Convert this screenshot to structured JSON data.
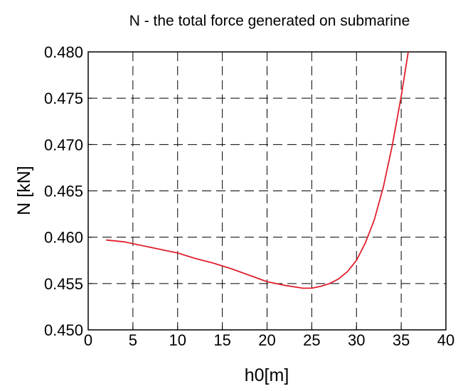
{
  "chart_data": {
    "type": "line",
    "title": "N - the total force generated on submarine",
    "xlabel": "h0[m]",
    "ylabel": "N [kN]",
    "xlim": [
      0,
      40
    ],
    "ylim": [
      0.45,
      0.48
    ],
    "xticks": [
      0,
      5,
      10,
      15,
      20,
      25,
      30,
      35,
      40
    ],
    "xtick_labels": [
      "0",
      "5",
      "10",
      "15",
      "20",
      "25",
      "30",
      "35",
      "40"
    ],
    "yticks": [
      0.45,
      0.455,
      0.46,
      0.465,
      0.47,
      0.475,
      0.48
    ],
    "ytick_labels": [
      "0.450",
      "0.455",
      "0.460",
      "0.465",
      "0.470",
      "0.475",
      "0.480"
    ],
    "grid": true,
    "series": [
      {
        "color": "#e0202c",
        "x": [
          2,
          4,
          6,
          8,
          10,
          12,
          14,
          16,
          18,
          20,
          22,
          24,
          24.5,
          25,
          26,
          27,
          28,
          29,
          30,
          31,
          32,
          33,
          34,
          35,
          36
        ],
        "y": [
          0.4597,
          0.4595,
          0.4591,
          0.4587,
          0.4583,
          0.4577,
          0.4572,
          0.4566,
          0.4559,
          0.4552,
          0.4548,
          0.4545,
          0.4545,
          0.4545,
          0.4547,
          0.455,
          0.4555,
          0.4563,
          0.4575,
          0.4594,
          0.4619,
          0.4654,
          0.4699,
          0.4752,
          0.4813
        ]
      }
    ]
  }
}
